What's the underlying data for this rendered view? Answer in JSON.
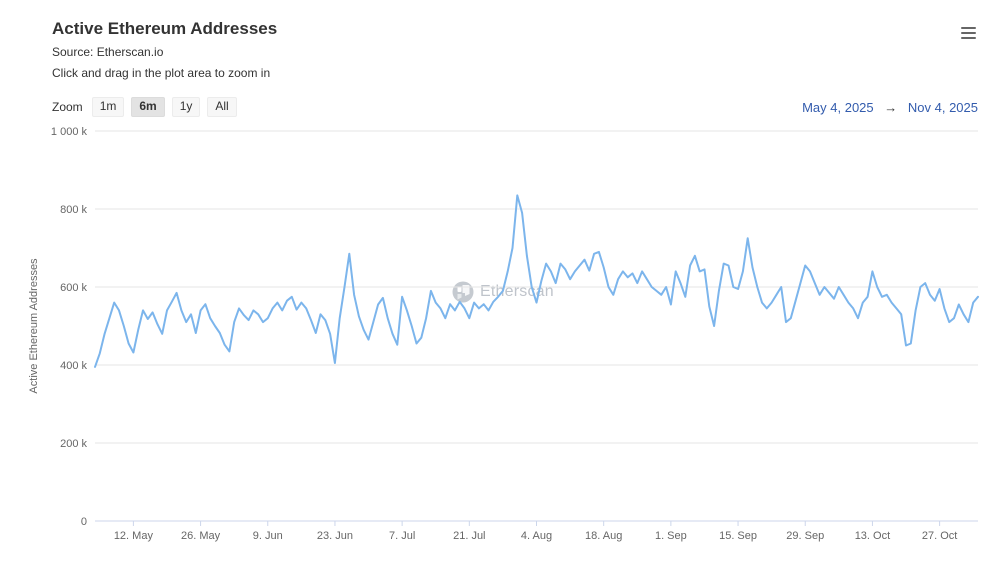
{
  "header": {
    "title": "Active Ethereum Addresses",
    "subtitle_source": "Source: Etherscan.io",
    "subtitle_hint": "Click and drag in the plot area to zoom in"
  },
  "context_menu": {
    "icon": "hamburger-icon"
  },
  "range_selector": {
    "zoom_label": "Zoom",
    "buttons": [
      {
        "label": "1m",
        "selected": false
      },
      {
        "label": "6m",
        "selected": true
      },
      {
        "label": "1y",
        "selected": false
      },
      {
        "label": "All",
        "selected": false
      }
    ],
    "from_date": "May 4, 2025",
    "arrow": "→",
    "to_date": "Nov 4, 2025"
  },
  "watermark": {
    "text": "Etherscan"
  },
  "colors": {
    "line": "#7cb5ec",
    "grid": "#e6e6e6",
    "axis": "#ccd6eb",
    "tick_label": "#666666",
    "title": "#333333",
    "range_date": "#335cad"
  },
  "chart_data": {
    "type": "line",
    "title": "Active Ethereum Addresses",
    "xlabel": "",
    "ylabel": "Active Ethereum Addresses",
    "series_name": "Active Ethereum Addresses",
    "unit": "thousand addresses (values_k are in thousands)",
    "start_date": "2025-05-04",
    "end_date": "2025-11-04",
    "interval": "daily",
    "ylim": [
      0,
      1000
    ],
    "grid": true,
    "legend": "none",
    "y_ticks": [
      {
        "value": 0,
        "label": "0"
      },
      {
        "value": 200,
        "label": "200 k"
      },
      {
        "value": 400,
        "label": "400 k"
      },
      {
        "value": 600,
        "label": "600 k"
      },
      {
        "value": 800,
        "label": "800 k"
      },
      {
        "value": 1000,
        "label": "1 000 k"
      }
    ],
    "x_ticks": [
      {
        "index": 8,
        "label": "12. May"
      },
      {
        "index": 22,
        "label": "26. May"
      },
      {
        "index": 36,
        "label": "9. Jun"
      },
      {
        "index": 50,
        "label": "23. Jun"
      },
      {
        "index": 64,
        "label": "7. Jul"
      },
      {
        "index": 78,
        "label": "21. Jul"
      },
      {
        "index": 92,
        "label": "4. Aug"
      },
      {
        "index": 106,
        "label": "18. Aug"
      },
      {
        "index": 120,
        "label": "1. Sep"
      },
      {
        "index": 134,
        "label": "15. Sep"
      },
      {
        "index": 148,
        "label": "29. Sep"
      },
      {
        "index": 162,
        "label": "13. Oct"
      },
      {
        "index": 176,
        "label": "27. Oct"
      }
    ],
    "values_k": [
      395,
      430,
      480,
      520,
      560,
      540,
      500,
      455,
      432,
      490,
      540,
      518,
      535,
      505,
      480,
      540,
      562,
      585,
      540,
      510,
      530,
      482,
      540,
      556,
      520,
      500,
      482,
      452,
      435,
      510,
      545,
      528,
      515,
      540,
      530,
      510,
      520,
      545,
      560,
      540,
      565,
      575,
      542,
      560,
      545,
      515,
      482,
      530,
      515,
      480,
      405,
      520,
      600,
      685,
      580,
      525,
      490,
      465,
      510,
      555,
      572,
      520,
      480,
      452,
      575,
      540,
      500,
      455,
      470,
      520,
      590,
      560,
      545,
      520,
      556,
      540,
      562,
      545,
      520,
      560,
      545,
      556,
      540,
      562,
      575,
      590,
      640,
      700,
      835,
      790,
      680,
      600,
      560,
      615,
      660,
      640,
      610,
      660,
      645,
      620,
      640,
      655,
      670,
      642,
      685,
      690,
      650,
      600,
      580,
      620,
      640,
      625,
      635,
      610,
      640,
      620,
      600,
      590,
      580,
      600,
      555,
      640,
      610,
      575,
      655,
      680,
      640,
      645,
      550,
      500,
      590,
      660,
      655,
      600,
      595,
      640,
      725,
      650,
      600,
      560,
      545,
      560,
      580,
      600,
      510,
      520,
      565,
      610,
      655,
      640,
      610,
      580,
      600,
      585,
      570,
      600,
      580,
      560,
      545,
      520,
      560,
      575,
      640,
      600,
      575,
      580,
      560,
      545,
      530,
      450,
      455,
      540,
      600,
      610,
      580,
      565,
      595,
      545,
      510,
      520,
      555,
      530,
      510,
      560,
      575
    ]
  }
}
